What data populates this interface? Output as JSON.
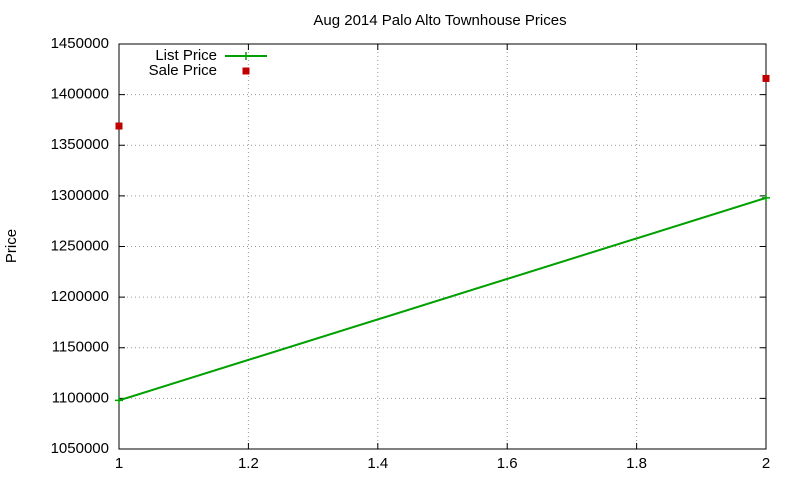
{
  "chart_data": {
    "type": "line",
    "title": "Aug 2014 Palo Alto Townhouse Prices",
    "y_label": "Price",
    "x": [
      1,
      2
    ],
    "series": [
      {
        "name": "List Price",
        "color": "#00a000",
        "mode": "lines+markers",
        "values": [
          1098000,
          1298000
        ]
      },
      {
        "name": "Sale Price",
        "color": "#c00000",
        "mode": "markers",
        "values": [
          1369000,
          1416000
        ]
      }
    ],
    "xlim": [
      1,
      2
    ],
    "xticks": [
      1,
      1.2,
      1.4,
      1.6,
      1.8,
      2
    ],
    "ylim": [
      1050000,
      1450000
    ],
    "yticks": [
      1050000,
      1100000,
      1150000,
      1200000,
      1250000,
      1300000,
      1350000,
      1400000,
      1450000
    ],
    "grid": true,
    "legend": "top-left"
  }
}
